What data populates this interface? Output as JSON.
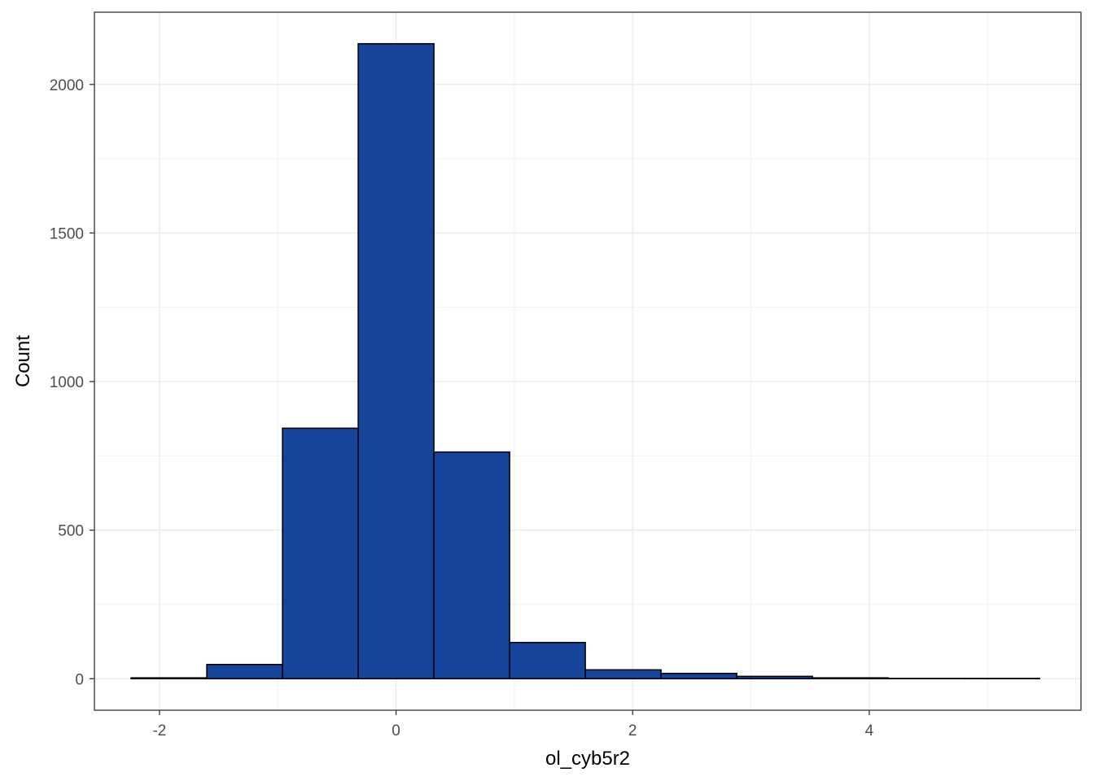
{
  "chart_data": {
    "type": "bar",
    "subtype": "histogram",
    "xlabel": "ol_cyb5r2",
    "ylabel": "Count",
    "xlim": [
      -2.55,
      5.79
    ],
    "ylim": [
      -106,
      2243
    ],
    "x_ticks": [
      -2,
      0,
      2,
      4
    ],
    "y_ticks": [
      0,
      500,
      1000,
      1500,
      2000
    ],
    "grid": true,
    "bin_edges": [
      -2.24,
      -1.6,
      -0.96,
      -0.32,
      0.32,
      0.96,
      1.6,
      2.24,
      2.88,
      3.52,
      4.16,
      4.8,
      5.44
    ],
    "values": [
      3,
      48,
      843,
      2137,
      763,
      122,
      30,
      18,
      8,
      3,
      1,
      1
    ],
    "fill_color": "#17449b",
    "outline_color": "#000000"
  }
}
